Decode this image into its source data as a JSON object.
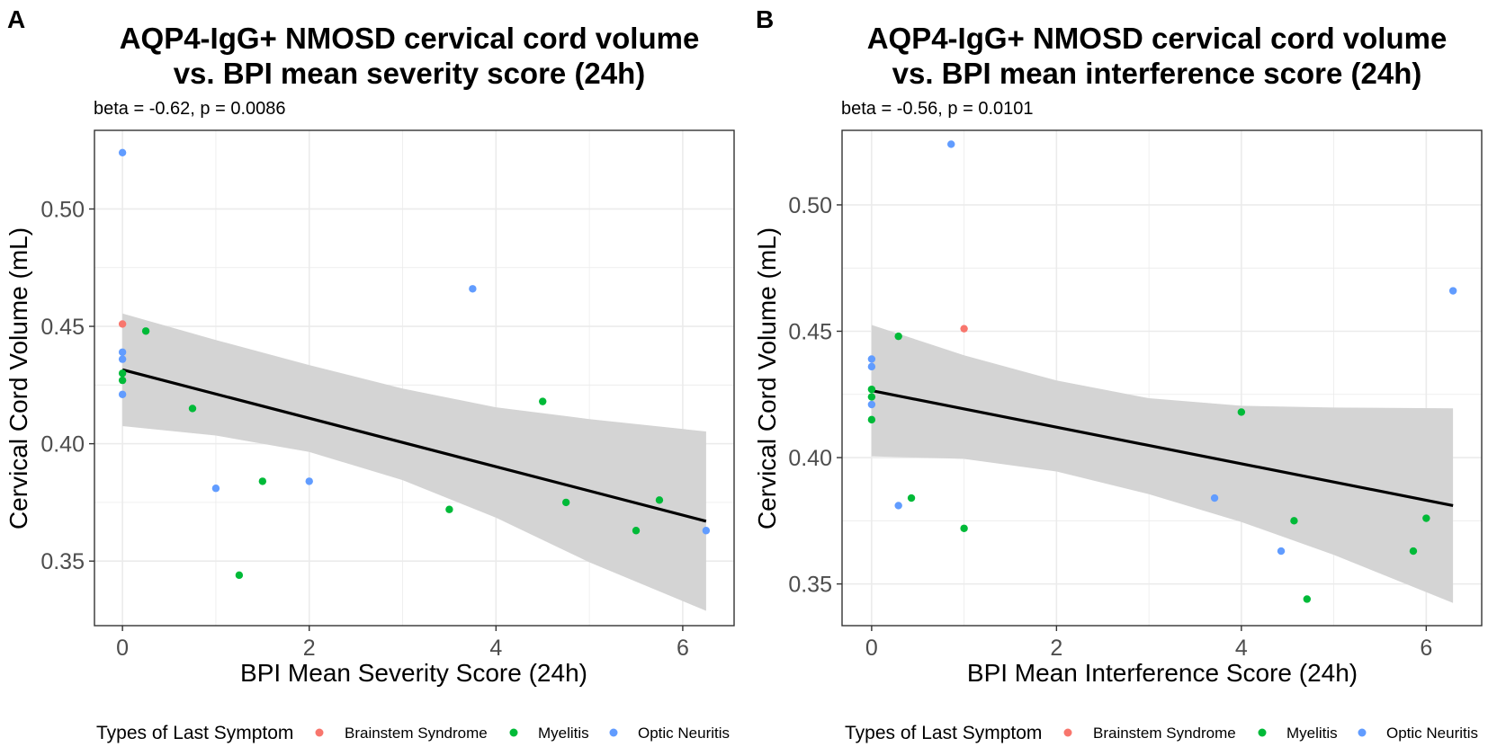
{
  "chart_data": [
    {
      "panel_label": "A",
      "type": "scatter",
      "title_line1": "AQP4-IgG+ NMOSD cervical cord volume",
      "title_line2": "vs. BPI mean severity score (24h)",
      "subtitle": "beta = -0.62, p = 0.0086",
      "xlabel": "BPI Mean Severity Score (24h)",
      "ylabel": "Cervical Cord Volume (mL)",
      "xlim": [
        -0.3,
        6.55
      ],
      "ylim": [
        0.3225,
        0.5335
      ],
      "xticks": [
        0,
        2,
        4,
        6
      ],
      "xtick_labels": [
        "0",
        "2",
        "4",
        "6"
      ],
      "yticks": [
        0.35,
        0.4,
        0.45,
        0.5
      ],
      "ytick_labels": [
        "0.35",
        "0.40",
        "0.45",
        "0.50"
      ],
      "grid": true,
      "series": [
        {
          "name": "Brainstem Syndrome",
          "color": "#F8766D",
          "points": [
            [
              0,
              0.451
            ]
          ]
        },
        {
          "name": "Myelitis",
          "color": "#00BA38",
          "points": [
            [
              0.25,
              0.448
            ],
            [
              0,
              0.427
            ],
            [
              0,
              0.43
            ],
            [
              0.75,
              0.415
            ],
            [
              1.25,
              0.344
            ],
            [
              1.5,
              0.384
            ],
            [
              3.5,
              0.372
            ],
            [
              4.5,
              0.418
            ],
            [
              4.75,
              0.375
            ],
            [
              5.5,
              0.363
            ],
            [
              5.75,
              0.376
            ]
          ]
        },
        {
          "name": "Optic Neuritis",
          "color": "#619CFF",
          "points": [
            [
              0,
              0.524
            ],
            [
              0,
              0.439
            ],
            [
              0,
              0.436
            ],
            [
              0,
              0.421
            ],
            [
              1,
              0.381
            ],
            [
              2,
              0.384
            ],
            [
              3.75,
              0.466
            ],
            [
              6.25,
              0.363
            ]
          ]
        }
      ],
      "fit_line": {
        "x": [
          0,
          6.25
        ],
        "y": [
          0.4315,
          0.367
        ]
      },
      "confidence_band": {
        "x": [
          0,
          1,
          2,
          3,
          4,
          5,
          6.25
        ],
        "upper": [
          0.4555,
          0.4442,
          0.4335,
          0.4235,
          0.4155,
          0.4105,
          0.4052
        ],
        "lower": [
          0.4075,
          0.4035,
          0.3965,
          0.3845,
          0.3685,
          0.3495,
          0.3288
        ]
      }
    },
    {
      "panel_label": "B",
      "type": "scatter",
      "title_line1": "AQP4-IgG+ NMOSD cervical cord volume",
      "title_line2": "vs. BPI mean interference score (24h)",
      "subtitle": "beta = -0.56, p = 0.0101",
      "xlabel": "BPI Mean Interference Score (24h)",
      "ylabel": "Cervical Cord Volume (mL)",
      "xlim": [
        -0.32,
        6.6
      ],
      "ylim": [
        0.3335,
        0.5295
      ],
      "xticks": [
        0,
        2,
        4,
        6
      ],
      "xtick_labels": [
        "0",
        "2",
        "4",
        "6"
      ],
      "yticks": [
        0.35,
        0.4,
        0.45,
        0.5
      ],
      "ytick_labels": [
        "0.35",
        "0.40",
        "0.45",
        "0.50"
      ],
      "grid": true,
      "series": [
        {
          "name": "Brainstem Syndrome",
          "color": "#F8766D",
          "points": [
            [
              1,
              0.451
            ]
          ]
        },
        {
          "name": "Myelitis",
          "color": "#00BA38",
          "points": [
            [
              0.29,
              0.448
            ],
            [
              0,
              0.427
            ],
            [
              0,
              0.424
            ],
            [
              0,
              0.415
            ],
            [
              0.43,
              0.384
            ],
            [
              1,
              0.372
            ],
            [
              4,
              0.418
            ],
            [
              4.57,
              0.375
            ],
            [
              4.71,
              0.344
            ],
            [
              5.86,
              0.363
            ],
            [
              6,
              0.376
            ]
          ]
        },
        {
          "name": "Optic Neuritis",
          "color": "#619CFF",
          "points": [
            [
              0.86,
              0.524
            ],
            [
              0,
              0.439
            ],
            [
              0,
              0.436
            ],
            [
              0,
              0.421
            ],
            [
              0.29,
              0.381
            ],
            [
              3.71,
              0.384
            ],
            [
              4.43,
              0.363
            ],
            [
              6.29,
              0.466
            ]
          ]
        }
      ],
      "fit_line": {
        "x": [
          0,
          6.29
        ],
        "y": [
          0.4265,
          0.381
        ]
      },
      "confidence_band": {
        "x": [
          0,
          1,
          2,
          3,
          4,
          5,
          6.29
        ],
        "upper": [
          0.4525,
          0.4405,
          0.4305,
          0.4235,
          0.4205,
          0.4198,
          0.4195
        ],
        "lower": [
          0.4005,
          0.3995,
          0.3945,
          0.3855,
          0.3745,
          0.3615,
          0.3425
        ]
      }
    }
  ],
  "legend": {
    "title": "Types of Last Symptom",
    "items": [
      {
        "label": "Brainstem Syndrome",
        "color": "#F8766D"
      },
      {
        "label": "Myelitis",
        "color": "#00BA38"
      },
      {
        "label": "Optic Neuritis",
        "color": "#619CFF"
      }
    ]
  },
  "colors": {
    "band": "#d4d4d4",
    "fit_line": "#000000",
    "grid": "#ebebeb",
    "panel_border": "#333333"
  }
}
